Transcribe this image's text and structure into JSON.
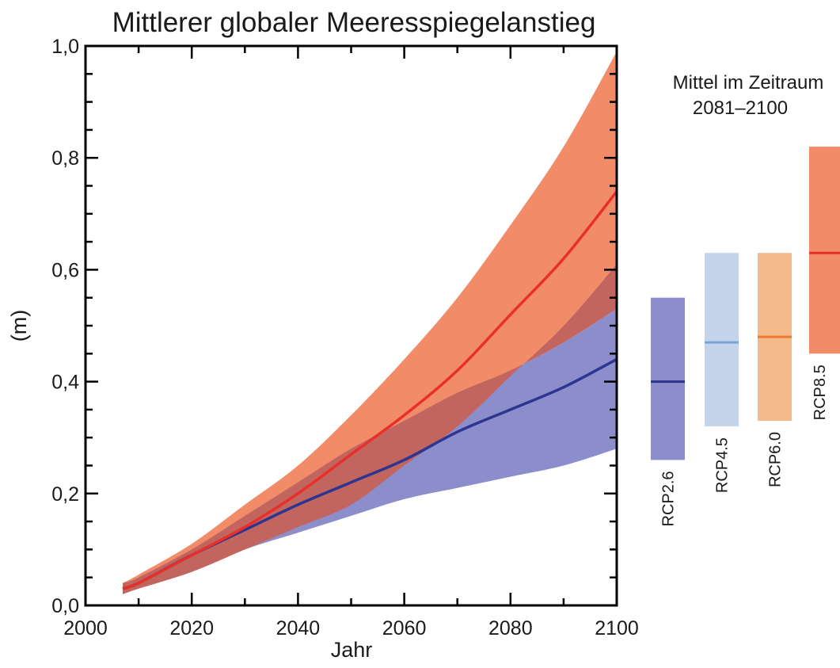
{
  "chart_data": {
    "type": "area",
    "title": "Mittlerer globaler Meeresspiegelanstieg",
    "xlabel": "Jahr",
    "ylabel": "(m)",
    "xlim": [
      2000,
      2100
    ],
    "ylim": [
      0.0,
      1.0
    ],
    "x_ticks": [
      "2000",
      "2020",
      "2040",
      "2060",
      "2080",
      "2100"
    ],
    "y_ticks": [
      "0,0",
      "0,2",
      "0,4",
      "0,6",
      "0,8",
      "1,0"
    ],
    "colors": {
      "rcp85_band": "#f28c68",
      "rcp85_line": "#e8302a",
      "rcp26_band": "#8c8ecb",
      "rcp26_line": "#2e3591",
      "overlap_band": "#c2655f"
    },
    "series": [
      {
        "name": "RCP8.5",
        "x": [
          2007,
          2010,
          2020,
          2030,
          2040,
          2050,
          2060,
          2070,
          2080,
          2090,
          2100
        ],
        "mean": [
          0.03,
          0.04,
          0.09,
          0.14,
          0.2,
          0.27,
          0.34,
          0.42,
          0.52,
          0.62,
          0.74
        ],
        "low": [
          0.02,
          0.03,
          0.06,
          0.1,
          0.14,
          0.18,
          0.25,
          0.32,
          0.41,
          0.5,
          0.61
        ],
        "high": [
          0.04,
          0.055,
          0.11,
          0.18,
          0.25,
          0.34,
          0.44,
          0.55,
          0.68,
          0.82,
          0.99
        ]
      },
      {
        "name": "RCP2.6",
        "x": [
          2007,
          2010,
          2020,
          2030,
          2040,
          2050,
          2060,
          2070,
          2080,
          2090,
          2100
        ],
        "mean": [
          0.03,
          0.04,
          0.09,
          0.135,
          0.18,
          0.22,
          0.26,
          0.31,
          0.35,
          0.39,
          0.44
        ],
        "low": [
          0.02,
          0.03,
          0.06,
          0.1,
          0.13,
          0.16,
          0.19,
          0.21,
          0.23,
          0.25,
          0.28
        ],
        "high": [
          0.04,
          0.05,
          0.1,
          0.16,
          0.22,
          0.28,
          0.33,
          0.38,
          0.42,
          0.47,
          0.53
        ]
      }
    ],
    "side_panel": {
      "title_line1": "Mittel im Zeitraum",
      "title_line2": "2081–2100",
      "bars": [
        {
          "label": "RCP2.6",
          "low": 0.26,
          "mean": 0.4,
          "high": 0.55,
          "fill": "#8c8ecb",
          "line": "#2e3591"
        },
        {
          "label": "RCP4.5",
          "low": 0.32,
          "mean": 0.47,
          "high": 0.63,
          "fill": "#c6d4eb",
          "line": "#7da3d6"
        },
        {
          "label": "RCP6.0",
          "low": 0.33,
          "mean": 0.48,
          "high": 0.63,
          "fill": "#f6b98a",
          "line": "#ea7b32"
        },
        {
          "label": "RCP8.5",
          "low": 0.45,
          "mean": 0.63,
          "high": 0.82,
          "fill": "#f28c68",
          "line": "#e8302a"
        }
      ]
    }
  }
}
